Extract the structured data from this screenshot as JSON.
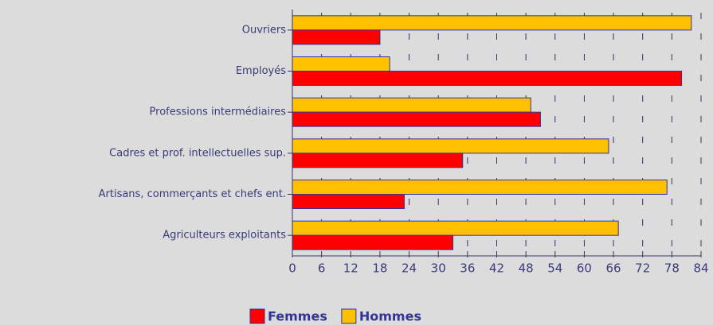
{
  "chart_data": {
    "type": "hbar",
    "categories": [
      "Ouvriers",
      "Employés",
      "Professions intermédiaires",
      "Cadres et prof. intellectuelles sup.",
      "Artisans, commerçants et chefs ent.",
      "Agriculteurs exploitants"
    ],
    "series": [
      {
        "name": "Femmes",
        "color": "#ff0000",
        "values": [
          18,
          80,
          51,
          35,
          23,
          33
        ]
      },
      {
        "name": "Hommes",
        "color": "#ffc000",
        "values": [
          82,
          20,
          49,
          65,
          77,
          67
        ]
      }
    ],
    "xlim": [
      0,
      84
    ],
    "xticks": [
      0,
      6,
      12,
      18,
      24,
      30,
      36,
      42,
      48,
      54,
      60,
      66,
      72,
      78,
      84
    ],
    "grid": true,
    "legend": "bottom"
  }
}
